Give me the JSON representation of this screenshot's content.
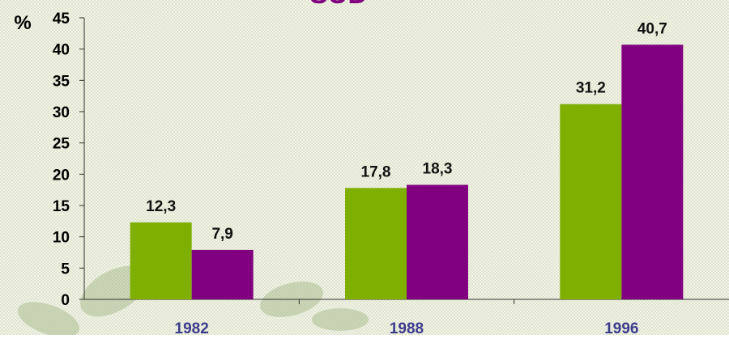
{
  "chart_data": {
    "type": "bar",
    "title": "SUD",
    "ylabel": "%",
    "categories": [
      "1982",
      "1988",
      "1996"
    ],
    "series": [
      {
        "color": "#7faf00",
        "values": [
          12.3,
          17.8,
          31.2
        ],
        "value_labels": [
          "12,3",
          "17,8",
          "31,2"
        ]
      },
      {
        "color": "#800080",
        "values": [
          7.9,
          18.3,
          40.7
        ],
        "value_labels": [
          "7,9",
          "18,3",
          "40,7"
        ]
      }
    ],
    "ylim": [
      0,
      45
    ],
    "yticks": [
      0,
      5,
      10,
      15,
      20,
      25,
      30,
      35,
      40,
      45
    ],
    "grid": false
  }
}
